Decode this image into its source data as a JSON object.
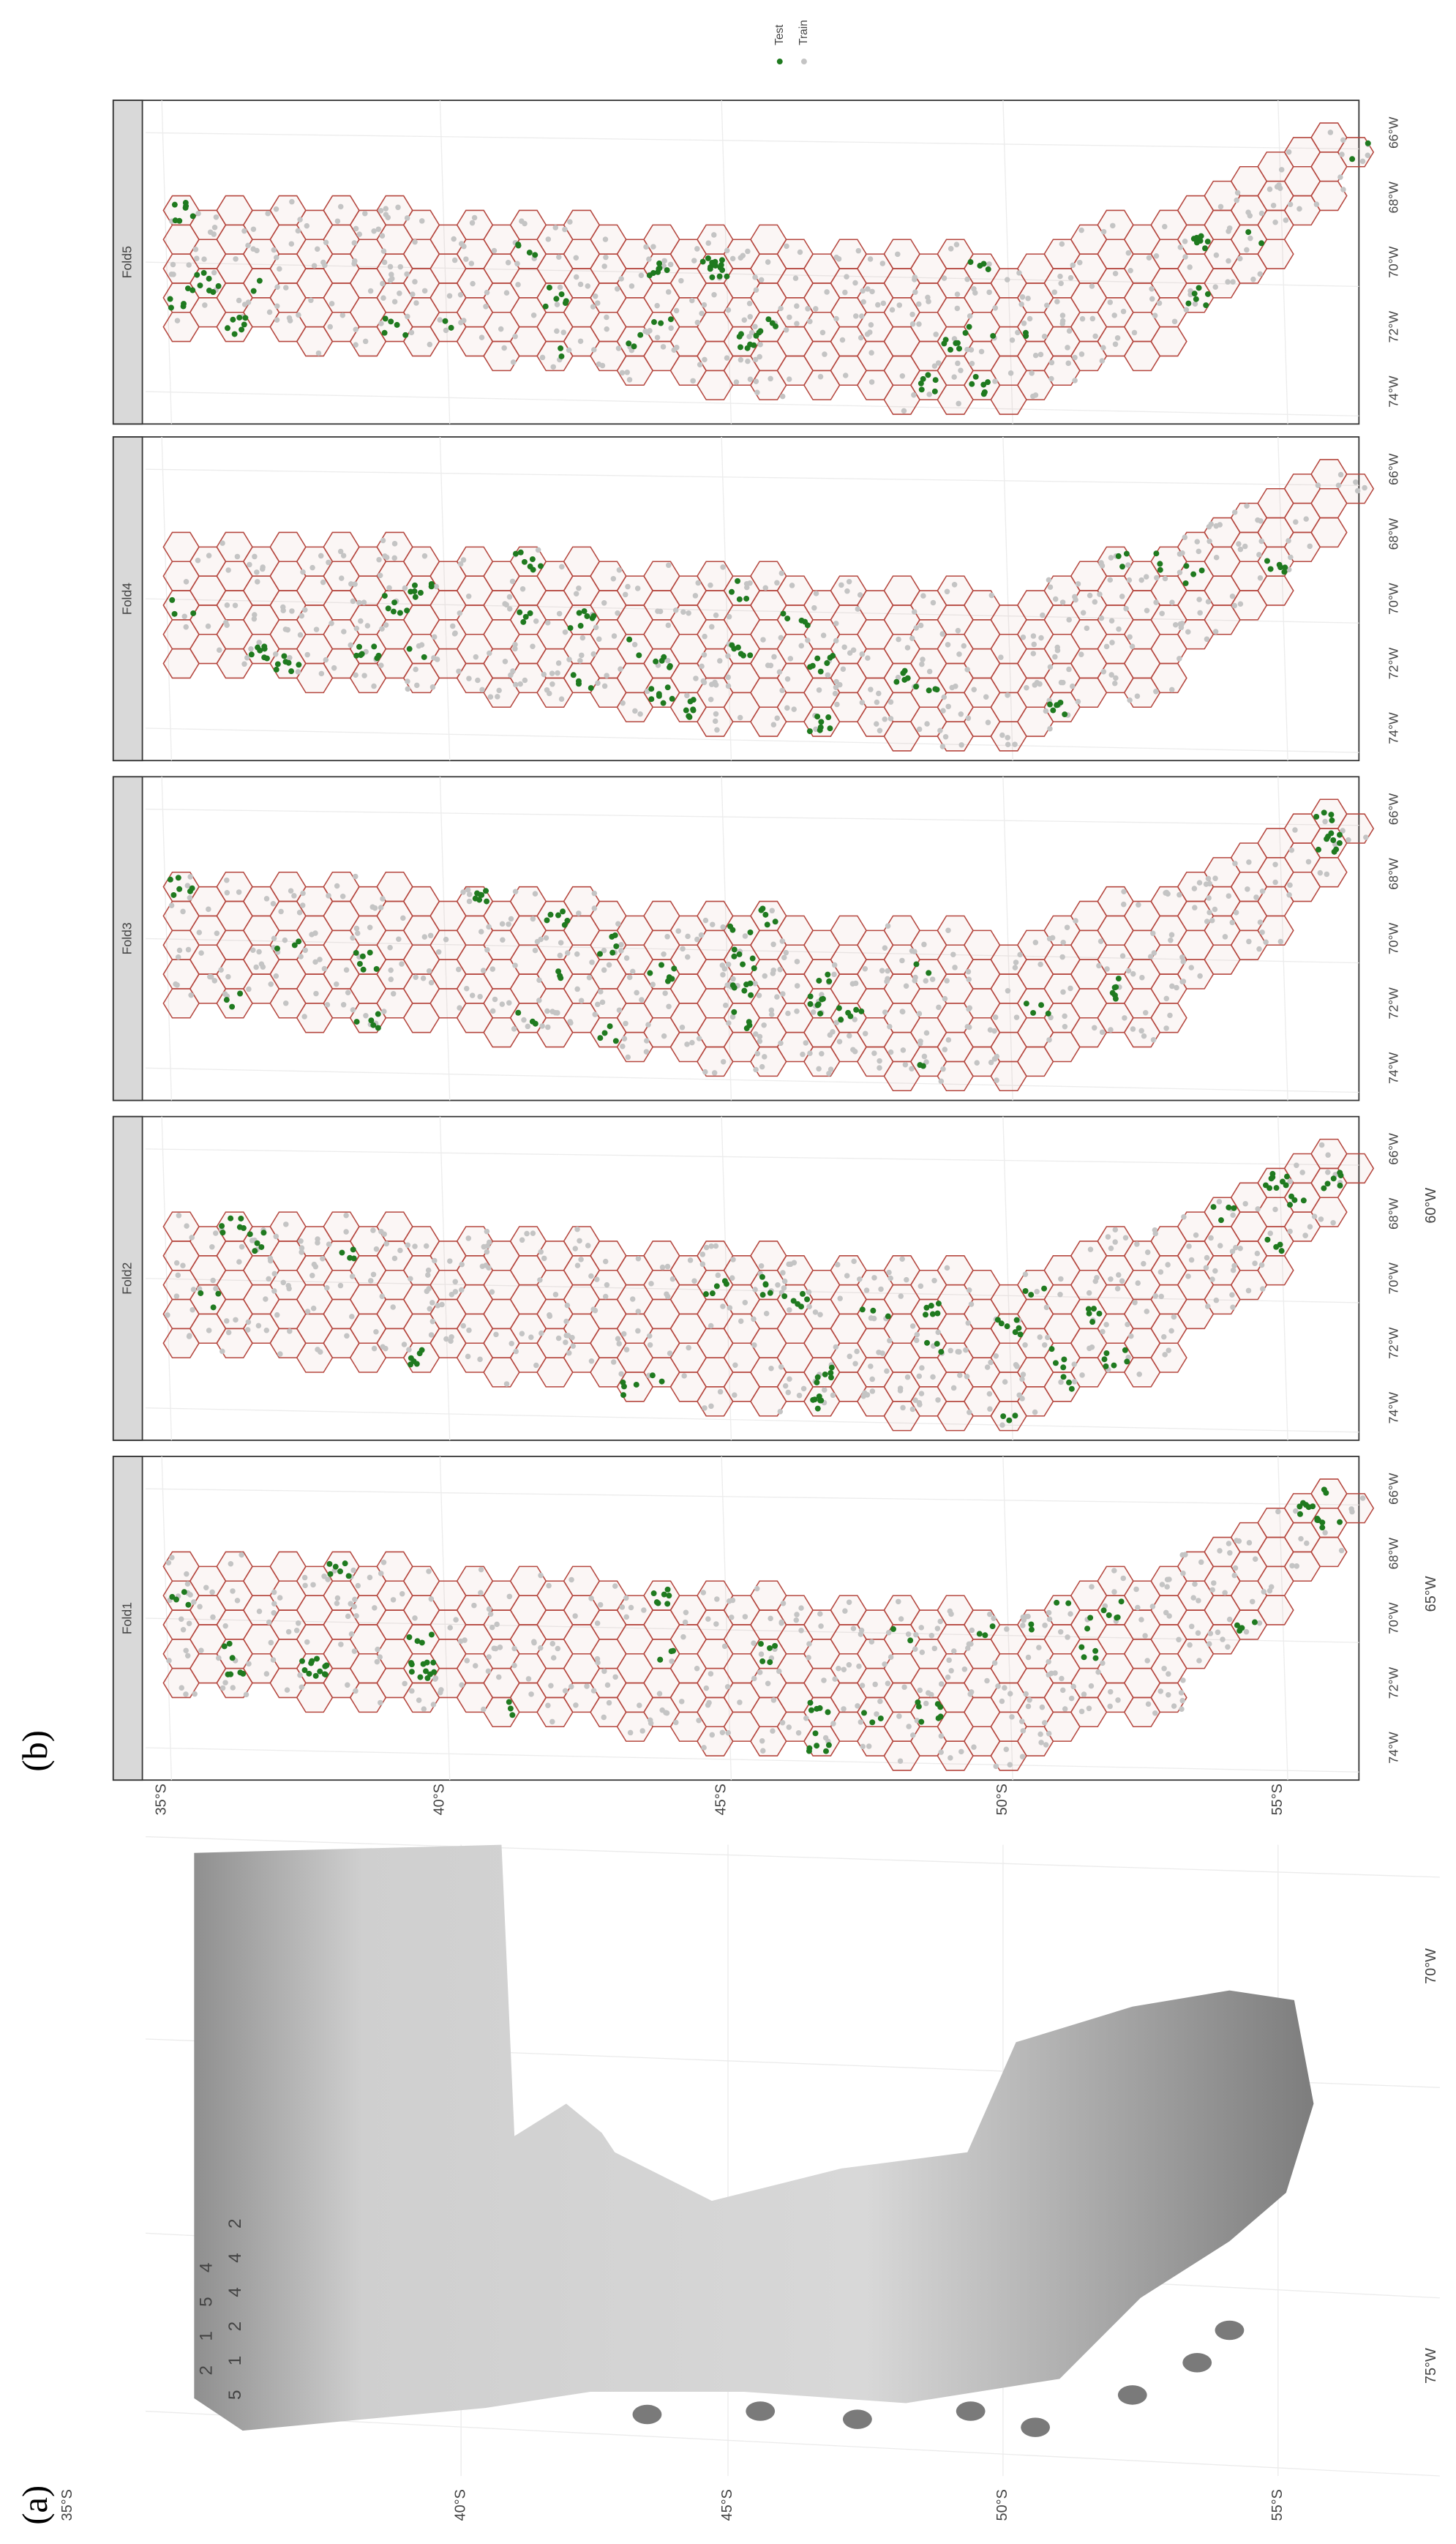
{
  "panel_labels": [
    "(a)",
    "(b)"
  ],
  "map_a": {
    "latitude_labels": [
      "35°S",
      "40°S",
      "45°S",
      "50°S",
      "55°S"
    ],
    "longitude_labels": [
      "75°W",
      "70°W",
      "65°W",
      "60°W"
    ],
    "hex_labels": [
      "2 1 5 4",
      "5 1 2 4 4 2"
    ]
  },
  "map_b": {
    "facets": [
      "Fold1",
      "Fold2",
      "Fold3",
      "Fold4",
      "Fold5"
    ],
    "latitude_labels": [
      "35°S",
      "40°S",
      "45°S",
      "50°S",
      "55°S"
    ],
    "longitude_labels": [
      "74°W",
      "72°W",
      "70°W",
      "68°W",
      "66°W"
    ],
    "legend": [
      "Test",
      "Train"
    ]
  }
}
